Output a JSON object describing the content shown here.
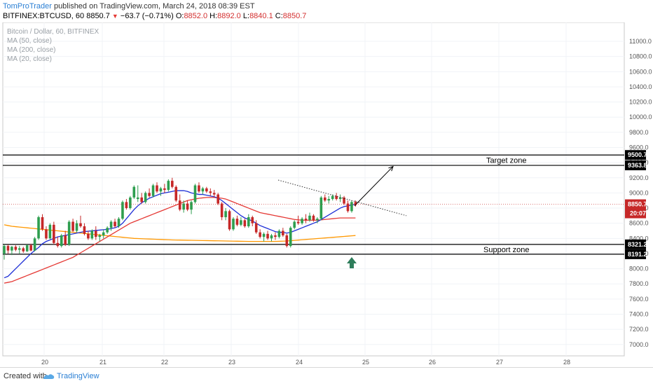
{
  "header": {
    "author": "TomProTrader",
    "published": " published on TradingView.com, March 24, 2018 08:39 EST",
    "symbol": "BITFINEX:BTCUSD, 60",
    "last": "8850.7",
    "change_triangle": "▼",
    "change": "−63.7 (−0.71%)",
    "open_label": "O:",
    "open": "8852.0",
    "high_label": "H:",
    "high": "8892.0",
    "low_label": "L:",
    "low": "8840.1",
    "close_label": "C:",
    "close": "8850.7"
  },
  "legend": {
    "title": "Bitcoin / Dollar, 60, BITFINEX",
    "ma50": "MA (50, close)",
    "ma200": "MA (200, close)",
    "ma20": "MA (20, close)"
  },
  "footer": {
    "created": "Created with",
    "brand": "TradingView"
  },
  "colors": {
    "up": "#2e9e4f",
    "down": "#c62828",
    "ma50": "#e53935",
    "ma200": "#ff9800",
    "ma20": "#1e2fd6",
    "arrow": "#2e7d5b"
  },
  "chart_data": {
    "type": "candlestick",
    "y_axis": {
      "ylim": [
        6850,
        11250
      ],
      "ticks": [
        "11000.0",
        "10800.0",
        "10600.0",
        "10400.0",
        "10200.0",
        "10000.0",
        "9800.0",
        "9600.0",
        "9400.0",
        "9200.0",
        "9000.0",
        "8800.0",
        "8600.0",
        "8400.0",
        "8200.0",
        "8000.0",
        "7800.0",
        "7600.0",
        "7400.0",
        "7200.0",
        "7000.0"
      ]
    },
    "x_axis": {
      "ticks": [
        "20",
        "21",
        "22",
        "23",
        "24",
        "25",
        "26",
        "27",
        "28"
      ]
    },
    "zones": {
      "target": {
        "label": "Target zone",
        "top": 9500.7,
        "bottom": 9363.8,
        "top_label": "9500.7",
        "bottom_label": "9363.8"
      },
      "support": {
        "label": "Support zone",
        "top": 8321.2,
        "bottom": 8191.2,
        "top_label": "8321.2",
        "bottom_label": "8191.2"
      }
    },
    "last_price": {
      "value": 8850.7,
      "label": "8850.7",
      "countdown": "20:07"
    },
    "candles": [
      [
        8200,
        8320,
        8120,
        8300
      ],
      [
        8300,
        8320,
        8200,
        8240
      ],
      [
        8240,
        8300,
        8180,
        8290
      ],
      [
        8290,
        8310,
        8230,
        8250
      ],
      [
        8250,
        8300,
        8200,
        8270
      ],
      [
        8270,
        8290,
        8210,
        8230
      ],
      [
        8230,
        8320,
        8220,
        8310
      ],
      [
        8310,
        8330,
        8230,
        8240
      ],
      [
        8240,
        8420,
        8230,
        8400
      ],
      [
        8400,
        8700,
        8380,
        8680
      ],
      [
        8680,
        8720,
        8500,
        8520
      ],
      [
        8520,
        8560,
        8380,
        8400
      ],
      [
        8400,
        8600,
        8390,
        8580
      ],
      [
        8580,
        8620,
        8320,
        8340
      ],
      [
        8340,
        8420,
        8280,
        8300
      ],
      [
        8300,
        8460,
        8280,
        8440
      ],
      [
        8440,
        8500,
        8300,
        8320
      ],
      [
        8320,
        8640,
        8300,
        8620
      ],
      [
        8620,
        8660,
        8480,
        8500
      ],
      [
        8500,
        8640,
        8480,
        8600
      ],
      [
        8600,
        8700,
        8540,
        8560
      ],
      [
        8560,
        8600,
        8440,
        8460
      ],
      [
        8460,
        8500,
        8380,
        8400
      ],
      [
        8400,
        8520,
        8380,
        8500
      ],
      [
        8500,
        8560,
        8380,
        8420
      ],
      [
        8420,
        8460,
        8360,
        8440
      ],
      [
        8440,
        8520,
        8400,
        8480
      ],
      [
        8480,
        8560,
        8460,
        8540
      ],
      [
        8540,
        8640,
        8500,
        8620
      ],
      [
        8620,
        8660,
        8540,
        8560
      ],
      [
        8560,
        8680,
        8540,
        8660
      ],
      [
        8660,
        8900,
        8640,
        8880
      ],
      [
        8880,
        8920,
        8780,
        8800
      ],
      [
        8800,
        8960,
        8780,
        8940
      ],
      [
        8940,
        9100,
        8920,
        9080
      ],
      [
        8920,
        9100,
        8880,
        8940
      ],
      [
        8940,
        9000,
        8860,
        8880
      ],
      [
        8880,
        9020,
        8860,
        9000
      ],
      [
        9000,
        9060,
        8940,
        8960
      ],
      [
        8960,
        9120,
        8940,
        9100
      ],
      [
        9100,
        9140,
        9000,
        9020
      ],
      [
        9020,
        9080,
        8960,
        9060
      ],
      [
        9060,
        9120,
        9000,
        9040
      ],
      [
        9040,
        9180,
        9020,
        9160
      ],
      [
        9160,
        9200,
        9060,
        9080
      ],
      [
        9080,
        9100,
        8880,
        8900
      ],
      [
        8900,
        8980,
        8760,
        8780
      ],
      [
        8780,
        8900,
        8740,
        8860
      ],
      [
        8860,
        8900,
        8760,
        8780
      ],
      [
        8780,
        8900,
        8720,
        8880
      ],
      [
        8880,
        9120,
        8860,
        9100
      ],
      [
        9100,
        9140,
        9000,
        9020
      ],
      [
        9020,
        9080,
        8980,
        9060
      ],
      [
        9060,
        9080,
        9000,
        9020
      ],
      [
        9020,
        9060,
        8960,
        9000
      ],
      [
        9000,
        9040,
        8940,
        8980
      ],
      [
        8980,
        9000,
        8840,
        8860
      ],
      [
        8860,
        8880,
        8640,
        8680
      ],
      [
        8680,
        8800,
        8640,
        8760
      ],
      [
        8760,
        8780,
        8500,
        8520
      ],
      [
        8520,
        8680,
        8500,
        8660
      ],
      [
        8660,
        8700,
        8560,
        8580
      ],
      [
        8580,
        8680,
        8560,
        8640
      ],
      [
        8640,
        8660,
        8540,
        8560
      ],
      [
        8560,
        8720,
        8540,
        8680
      ],
      [
        8680,
        8700,
        8560,
        8600
      ],
      [
        8600,
        8640,
        8460,
        8480
      ],
      [
        8480,
        8520,
        8400,
        8420
      ],
      [
        8420,
        8480,
        8360,
        8460
      ],
      [
        8460,
        8500,
        8380,
        8400
      ],
      [
        8400,
        8460,
        8360,
        8440
      ],
      [
        8440,
        8480,
        8380,
        8420
      ],
      [
        8420,
        8520,
        8400,
        8500
      ],
      [
        8500,
        8540,
        8420,
        8440
      ],
      [
        8440,
        8460,
        8280,
        8300
      ],
      [
        8300,
        8560,
        8280,
        8540
      ],
      [
        8540,
        8640,
        8520,
        8620
      ],
      [
        8620,
        8700,
        8580,
        8600
      ],
      [
        8600,
        8680,
        8580,
        8660
      ],
      [
        8660,
        8720,
        8600,
        8640
      ],
      [
        8640,
        8740,
        8620,
        8700
      ],
      [
        8700,
        8720,
        8620,
        8640
      ],
      [
        8640,
        8680,
        8600,
        8660
      ],
      [
        8660,
        8960,
        8640,
        8940
      ],
      [
        8940,
        8980,
        8880,
        8900
      ],
      [
        8900,
        8960,
        8860,
        8920
      ],
      [
        8920,
        8980,
        8900,
        8960
      ],
      [
        8960,
        9000,
        8900,
        8920
      ],
      [
        8920,
        8980,
        8880,
        8940
      ],
      [
        8940,
        8960,
        8840,
        8860
      ],
      [
        8860,
        8900,
        8740,
        8760
      ],
      [
        8760,
        8900,
        8740,
        8880
      ],
      [
        8880,
        8900,
        8820,
        8840
      ]
    ],
    "ma20": [
      7880,
      7900,
      7950,
      8000,
      8050,
      8100,
      8150,
      8200,
      8240,
      8280,
      8330,
      8360,
      8380,
      8400,
      8420,
      8430,
      8440,
      8450,
      8460,
      8470,
      8480,
      8490,
      8495,
      8500,
      8505,
      8510,
      8515,
      8520,
      8530,
      8540,
      8560,
      8600,
      8660,
      8720,
      8780,
      8830,
      8870,
      8900,
      8930,
      8950,
      8970,
      8990,
      9000,
      9010,
      9020,
      9030,
      9030,
      9030,
      9020,
      9000,
      8990,
      8980,
      8980,
      8970,
      8960,
      8950,
      8930,
      8900,
      8860,
      8820,
      8780,
      8740,
      8700,
      8670,
      8650,
      8630,
      8600,
      8570,
      8550,
      8530,
      8510,
      8490,
      8480,
      8480,
      8470,
      8480,
      8500,
      8520,
      8540,
      8560,
      8580,
      8600,
      8620,
      8650,
      8680,
      8710,
      8740,
      8770,
      8800,
      8820,
      8830,
      8840,
      8850
    ],
    "ma50": [
      7810,
      7820,
      7830,
      7850,
      7870,
      7890,
      7910,
      7930,
      7950,
      7970,
      7990,
      8010,
      8030,
      8050,
      8070,
      8090,
      8110,
      8130,
      8150,
      8180,
      8210,
      8240,
      8270,
      8300,
      8330,
      8360,
      8390,
      8420,
      8450,
      8480,
      8510,
      8540,
      8570,
      8600,
      8620,
      8640,
      8660,
      8680,
      8700,
      8720,
      8740,
      8760,
      8780,
      8800,
      8820,
      8840,
      8860,
      8880,
      8900,
      8910,
      8920,
      8930,
      8935,
      8940,
      8940,
      8940,
      8935,
      8930,
      8920,
      8900,
      8880,
      8860,
      8840,
      8820,
      8800,
      8780,
      8760,
      8740,
      8730,
      8720,
      8710,
      8700,
      8690,
      8680,
      8670,
      8660,
      8650,
      8645,
      8640,
      8640,
      8640,
      8640,
      8640,
      8645,
      8650,
      8655,
      8660,
      8665,
      8670,
      8670,
      8670,
      8670,
      8670
    ],
    "ma200": [
      8580,
      8570,
      8560,
      8555,
      8550,
      8545,
      8540,
      8535,
      8530,
      8525,
      8520,
      8515,
      8510,
      8505,
      8500,
      8495,
      8490,
      8485,
      8480,
      8475,
      8470,
      8465,
      8460,
      8455,
      8450,
      8445,
      8440,
      8435,
      8430,
      8425,
      8420,
      8415,
      8410,
      8405,
      8400,
      8398,
      8396,
      8394,
      8392,
      8390,
      8388,
      8386,
      8384,
      8382,
      8380,
      8379,
      8378,
      8377,
      8376,
      8375,
      8374,
      8373,
      8372,
      8371,
      8370,
      8369,
      8368,
      8367,
      8366,
      8365,
      8364,
      8363,
      8362,
      8361,
      8360,
      8360,
      8360,
      8360,
      8360,
      8360,
      8360,
      8360,
      8362,
      8364,
      8366,
      8370,
      8374,
      8378,
      8382,
      8386,
      8390,
      8394,
      8398,
      8402,
      8406,
      8410,
      8414,
      8418,
      8422,
      8426,
      8430,
      8434,
      8438
    ],
    "trendline": {
      "from": [
        397,
        9170
      ],
      "to": [
        580,
        8700
      ]
    },
    "projection": {
      "from": [
        506,
        8830
      ],
      "to": [
        561,
        9350
      ]
    }
  }
}
